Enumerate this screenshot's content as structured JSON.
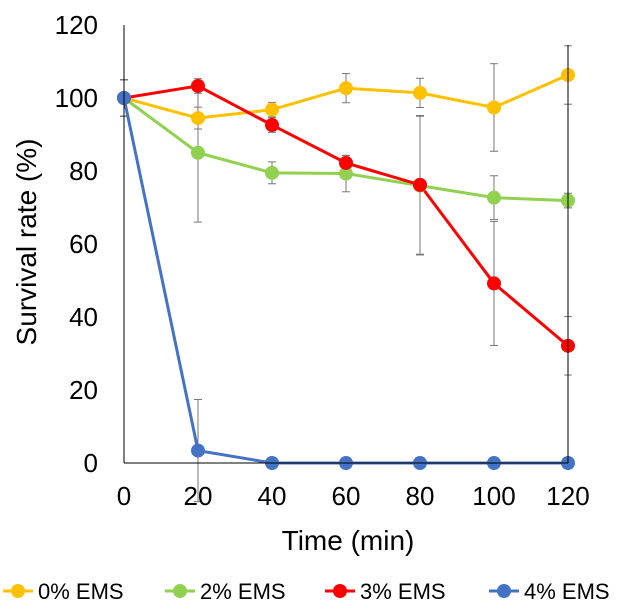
{
  "chart_data": {
    "type": "line",
    "xlabel": "Time (min)",
    "ylabel": "Survival rate (%)",
    "x": [
      0,
      20,
      40,
      60,
      80,
      100,
      120
    ],
    "xlim": [
      0,
      120
    ],
    "ylim": [
      0,
      120
    ],
    "xticks": [
      0,
      20,
      40,
      60,
      80,
      100,
      120
    ],
    "yticks": [
      0,
      20,
      40,
      60,
      80,
      100,
      120
    ],
    "grid": false,
    "legend_position": "bottom",
    "error_bars": true,
    "series": [
      {
        "name": "0% EMS",
        "legend_label": "0% EMS",
        "color": "#FFC000",
        "values": [
          100,
          94.5,
          96.8,
          102.7,
          101.4,
          97.4,
          106.3
        ],
        "errors": [
          5,
          3,
          2,
          4,
          4,
          12,
          8
        ]
      },
      {
        "name": "2% EMS",
        "legend_label": "2% EMS",
        "color": "#92D050",
        "values": [
          100,
          85,
          79.5,
          79.3,
          76,
          72.7,
          71.9
        ],
        "errors": [
          5,
          19,
          3,
          5,
          19,
          6,
          2
        ]
      },
      {
        "name": "3% EMS",
        "legend_label": "3% EMS",
        "color": "#FF0000",
        "values": [
          100,
          103.3,
          92.6,
          82.2,
          76.2,
          49.2,
          32.1
        ],
        "errors": [
          5,
          2,
          2,
          2,
          19,
          17,
          8
        ]
      },
      {
        "name": "4% EMS",
        "legend_label": "4% EMS",
        "color": "#4472C4",
        "values": [
          100,
          3.4,
          0,
          0,
          0,
          0,
          0
        ],
        "errors": [
          5,
          14,
          0,
          0,
          0,
          0,
          0
        ]
      }
    ]
  }
}
